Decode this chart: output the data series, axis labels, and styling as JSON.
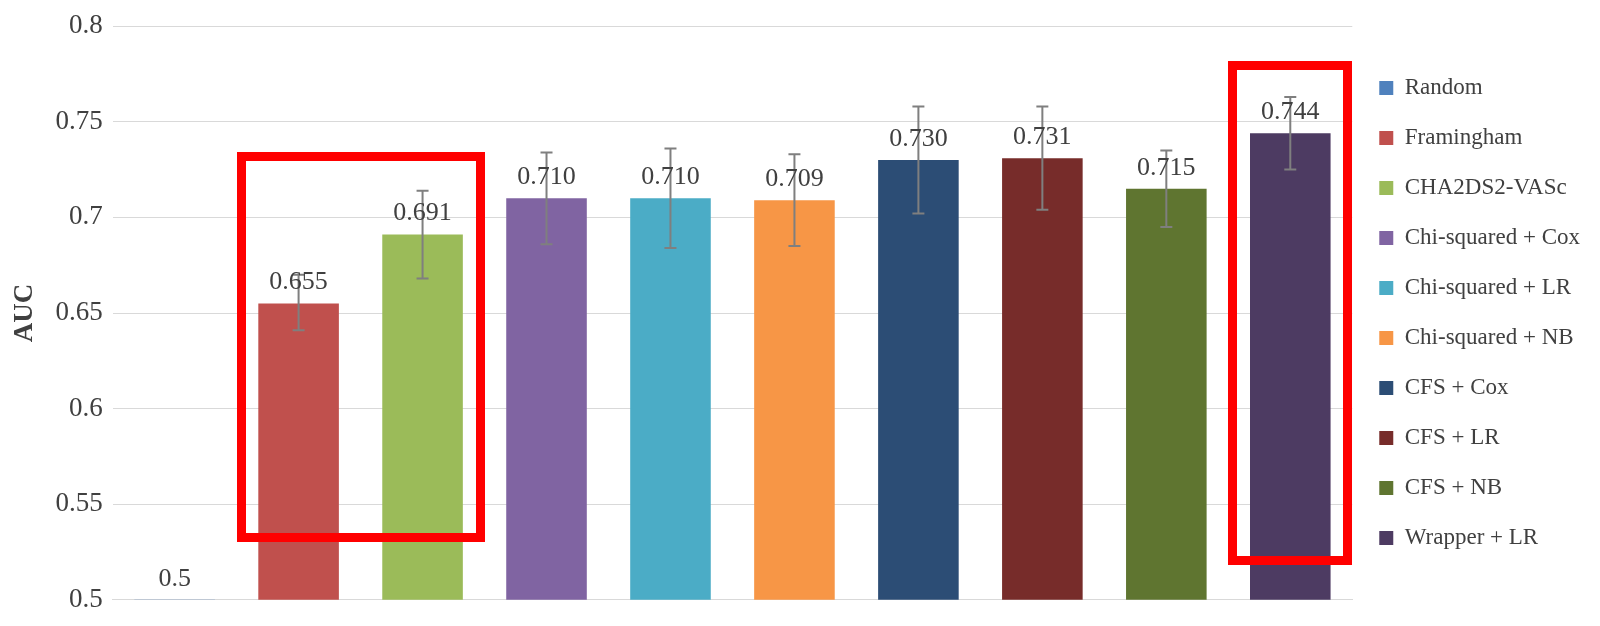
{
  "chart_data": {
    "type": "bar",
    "ylabel": "AUC",
    "categories": [
      null,
      null,
      null,
      null,
      null,
      null,
      null,
      null,
      null,
      null
    ],
    "ylim": [
      0.5,
      0.8
    ],
    "yticks": [
      0.5,
      0.55,
      0.6,
      0.65,
      0.7,
      0.75,
      0.8
    ],
    "grid": "y",
    "legend": "right",
    "series": [
      {
        "name": "Random",
        "color": "#4f81bd",
        "values": [
          0.5,
          null,
          null,
          null,
          null,
          null,
          null,
          null,
          null,
          null
        ],
        "value_labels": [
          "0.5",
          null,
          null,
          null,
          null,
          null,
          null,
          null,
          null,
          null
        ]
      },
      {
        "name": "Framingham",
        "color": "#c0504d",
        "values": [
          null,
          0.655,
          null,
          null,
          null,
          null,
          null,
          null,
          null,
          null
        ],
        "errors": [
          null,
          [
            0.641,
            0.67
          ],
          null,
          null,
          null,
          null,
          null,
          null,
          null,
          null
        ],
        "value_labels": [
          null,
          "0.655",
          null,
          null,
          null,
          null,
          null,
          null,
          null,
          null
        ]
      },
      {
        "name": "CHA2DS2-VASc",
        "color": "#9bbb59",
        "values": [
          null,
          null,
          0.691,
          null,
          null,
          null,
          null,
          null,
          null,
          null
        ],
        "errors": [
          null,
          null,
          [
            0.668,
            0.714
          ],
          null,
          null,
          null,
          null,
          null,
          null,
          null
        ],
        "value_labels": [
          null,
          null,
          "0.691",
          null,
          null,
          null,
          null,
          null,
          null,
          null
        ]
      },
      {
        "name": "Chi-squared + Cox",
        "color": "#8064a2",
        "values": [
          null,
          null,
          null,
          0.71,
          null,
          null,
          null,
          null,
          null,
          null
        ],
        "errors": [
          null,
          null,
          null,
          [
            0.686,
            0.734
          ],
          null,
          null,
          null,
          null,
          null,
          null
        ],
        "value_labels": [
          null,
          null,
          null,
          "0.710",
          null,
          null,
          null,
          null,
          null,
          null
        ]
      },
      {
        "name": "Chi-squared + LR",
        "color": "#4bacc6",
        "values": [
          null,
          null,
          null,
          null,
          0.71,
          null,
          null,
          null,
          null,
          null
        ],
        "errors": [
          null,
          null,
          null,
          null,
          [
            0.684,
            0.736
          ],
          null,
          null,
          null,
          null,
          null
        ],
        "value_labels": [
          null,
          null,
          null,
          null,
          "0.710",
          null,
          null,
          null,
          null,
          null
        ]
      },
      {
        "name": "Chi-squared + NB",
        "color": "#f79646",
        "values": [
          null,
          null,
          null,
          null,
          null,
          0.709,
          null,
          null,
          null,
          null
        ],
        "errors": [
          null,
          null,
          null,
          null,
          null,
          [
            0.685,
            0.733
          ],
          null,
          null,
          null,
          null
        ],
        "value_labels": [
          null,
          null,
          null,
          null,
          null,
          "0.709",
          null,
          null,
          null,
          null
        ]
      },
      {
        "name": "CFS + Cox",
        "color": "#2c4d75",
        "values": [
          null,
          null,
          null,
          null,
          null,
          null,
          0.73,
          null,
          null,
          null
        ],
        "errors": [
          null,
          null,
          null,
          null,
          null,
          null,
          [
            0.702,
            0.758
          ],
          null,
          null,
          null
        ],
        "value_labels": [
          null,
          null,
          null,
          null,
          null,
          null,
          "0.730",
          null,
          null,
          null
        ]
      },
      {
        "name": "CFS + LR",
        "color": "#772c2a",
        "values": [
          null,
          null,
          null,
          null,
          null,
          null,
          null,
          0.731,
          null,
          null
        ],
        "errors": [
          null,
          null,
          null,
          null,
          null,
          null,
          null,
          [
            0.704,
            0.758
          ],
          null,
          null
        ],
        "value_labels": [
          null,
          null,
          null,
          null,
          null,
          null,
          null,
          "0.731",
          null,
          null
        ]
      },
      {
        "name": "CFS + NB",
        "color": "#5f7530",
        "values": [
          null,
          null,
          null,
          null,
          null,
          null,
          null,
          null,
          0.715,
          null
        ],
        "errors": [
          null,
          null,
          null,
          null,
          null,
          null,
          null,
          null,
          [
            0.695,
            0.735
          ],
          null
        ],
        "value_labels": [
          null,
          null,
          null,
          null,
          null,
          null,
          null,
          null,
          "0.715",
          null
        ]
      },
      {
        "name": "Wrapper + LR",
        "color": "#4d3b62",
        "values": [
          null,
          null,
          null,
          null,
          null,
          null,
          null,
          null,
          null,
          0.744
        ],
        "errors": [
          null,
          null,
          null,
          null,
          null,
          null,
          null,
          null,
          null,
          [
            0.725,
            0.763
          ]
        ],
        "value_labels": [
          null,
          null,
          null,
          null,
          null,
          null,
          null,
          null,
          null,
          "0.744"
        ]
      }
    ]
  }
}
